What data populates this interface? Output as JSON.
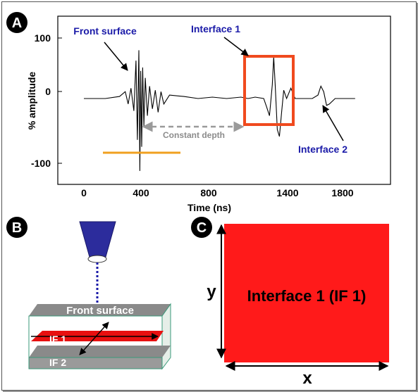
{
  "panel_a": {
    "badge": "A",
    "ylabel": "% amplitude",
    "xlabel": "Time (ns)",
    "yticks": [
      "100",
      "0",
      "-100"
    ],
    "xticks": [
      "0",
      "400",
      "800",
      "1400",
      "1800"
    ],
    "annotations": {
      "front_surface": "Front surface",
      "interface1": "Interface 1",
      "interface2": "Interface 2",
      "constant_depth": "Constant depth"
    },
    "colors": {
      "annotation_text": "#1a1aa8",
      "box": "#f04a1e",
      "gate": "#f0a020",
      "dashed": "#9a9a9a"
    }
  },
  "panel_b": {
    "badge": "B",
    "front_surface": "Front surface",
    "if1": "IF 1",
    "if2": "IF 2",
    "colors": {
      "transducer": "#2c2c9c",
      "layer": "#e81010",
      "slab_top": "#8a8a8a"
    }
  },
  "panel_c": {
    "badge": "C",
    "square_label": "Interface 1 (IF 1)",
    "x_axis": "x",
    "y_axis": "y",
    "colors": {
      "square": "#ff1a1a"
    }
  },
  "chart_data": {
    "type": "line",
    "title": "",
    "xlabel": "Time (ns)",
    "ylabel": "% amplitude",
    "xlim": [
      -100,
      2200
    ],
    "ylim": [
      -130,
      130
    ],
    "xticks": [
      0,
      400,
      800,
      1400,
      1800
    ],
    "yticks": [
      100,
      0,
      -100
    ],
    "series": [
      {
        "x": [
          0,
          150,
          250,
          290,
          310,
          330,
          350,
          365,
          375,
          385,
          392,
          398,
          405,
          412,
          420,
          430,
          445,
          460,
          480,
          500,
          520,
          540,
          560,
          600,
          700,
          800,
          900,
          1000,
          1100,
          1150,
          1200,
          1260,
          1280,
          1300,
          1320,
          1330,
          1340,
          1355,
          1370,
          1385,
          1400,
          1420,
          1450,
          1480,
          1550,
          1600,
          1640,
          1660,
          1680,
          1700,
          1720,
          1760,
          1800,
          1900
        ],
        "y": [
          0,
          0,
          3,
          10,
          -8,
          15,
          -18,
          55,
          -60,
          70,
          -105,
          40,
          -70,
          45,
          -40,
          30,
          -25,
          18,
          -15,
          12,
          -20,
          10,
          -8,
          5,
          3,
          0,
          2,
          0,
          2,
          0,
          2,
          0,
          -12,
          -25,
          20,
          60,
          20,
          -45,
          -55,
          -20,
          12,
          0,
          15,
          0,
          0,
          0,
          5,
          18,
          10,
          -10,
          -8,
          0,
          0,
          0
        ]
      }
    ],
    "annotations": [
      "Front surface",
      "Interface 1",
      "Interface 2",
      "Constant depth"
    ]
  }
}
